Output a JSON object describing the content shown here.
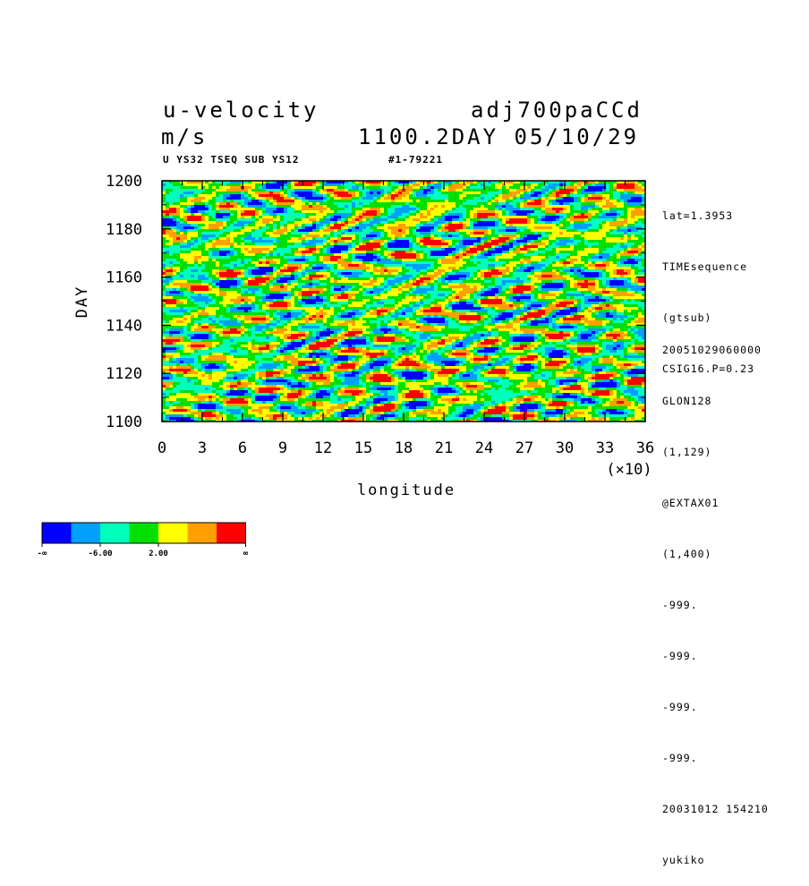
{
  "header": {
    "title_left": "u-velocity",
    "title_right": "adj700paCCd",
    "unit": "m/s",
    "time_info": "1100.2DAY 05/10/29",
    "subtitle_left": "U YS32 TSEQ SUB YS12",
    "subtitle_right": "#1-79221"
  },
  "side_info_top": [
    "lat=1.3953",
    "TIMEsequence",
    "(gtsub)",
    "CSIG16.P=0.23"
  ],
  "side_info_bottom": [
    "20051029060000",
    "GLON128",
    "(1,129)",
    "@EXTAX01",
    "(1,400)",
    "-999.",
    "-999.",
    "-999.",
    "-999.",
    "20031012 154210",
    "yukiko"
  ],
  "colorbar": {
    "colors": [
      "#0000ff",
      "#00a0ff",
      "#00ffbb",
      "#00e000",
      "#ffff00",
      "#ffa000",
      "#ff0000"
    ],
    "labels": [
      "-∞",
      "-6.00",
      "2.00",
      "∞"
    ]
  },
  "chart_data": {
    "type": "heatmap",
    "title": "u-velocity",
    "xlabel": "longitude",
    "ylabel": "DAY",
    "x_multiplier_label": "(×10)",
    "xlim": [
      0,
      36
    ],
    "ylim": [
      1100,
      1200
    ],
    "x_ticks": [
      0,
      3,
      6,
      9,
      12,
      15,
      18,
      21,
      24,
      27,
      30,
      33,
      36
    ],
    "y_ticks": [
      1100,
      1120,
      1140,
      1160,
      1180,
      1200
    ],
    "x_tick_labels": [
      "0",
      "3",
      "6",
      "9",
      "12",
      "15",
      "18",
      "21",
      "24",
      "27",
      "30",
      "33",
      "36"
    ],
    "y_tick_labels": [
      "1100",
      "1120",
      "1140",
      "1160",
      "1180",
      "1200"
    ]
  }
}
